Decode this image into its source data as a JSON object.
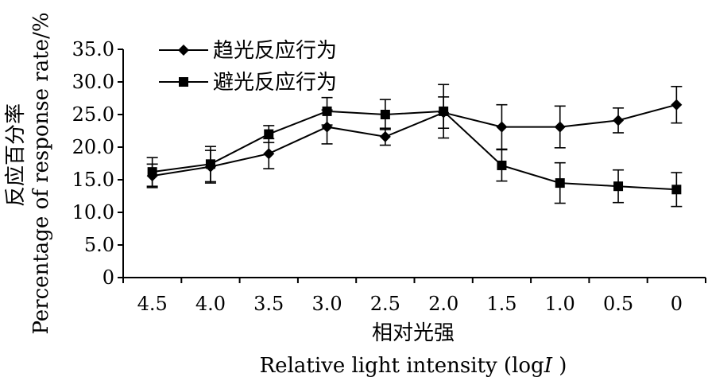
{
  "chart_data": {
    "type": "line",
    "categories": [
      "4.5",
      "4.0",
      "3.5",
      "3.0",
      "2.5",
      "2.0",
      "1.5",
      "1.0",
      "0.5",
      "0"
    ],
    "series": [
      {
        "name": "趋光反应行为",
        "marker": "diamond",
        "values": [
          15.6,
          17.0,
          19.0,
          23.1,
          21.6,
          25.3,
          23.1,
          23.1,
          24.1,
          26.5
        ],
        "errors": [
          1.8,
          2.5,
          2.3,
          2.6,
          1.3,
          2.4,
          3.4,
          3.2,
          1.9,
          2.8
        ]
      },
      {
        "name": "避光反应行为",
        "marker": "square",
        "values": [
          16.2,
          17.4,
          22.0,
          25.5,
          25.0,
          25.5,
          17.2,
          14.5,
          14.0,
          13.5
        ],
        "errors": [
          2.2,
          2.7,
          1.3,
          2.1,
          2.3,
          4.1,
          2.4,
          3.1,
          2.5,
          2.6
        ]
      }
    ],
    "xlabel": "相对光强",
    "xlabel_en": "Relative light intensity (log",
    "xlabel_en_var": "I",
    "xlabel_en_end": " )",
    "ylabel": "反应百分率",
    "ylabel_en": "Percentage of response rate/%",
    "ylim": [
      0,
      35
    ],
    "yticks": [
      "0",
      "5.0",
      "10.0",
      "15.0",
      "20.0",
      "25.0",
      "30.0",
      "35.0"
    ],
    "legend_position": "top-left",
    "grid": false
  }
}
